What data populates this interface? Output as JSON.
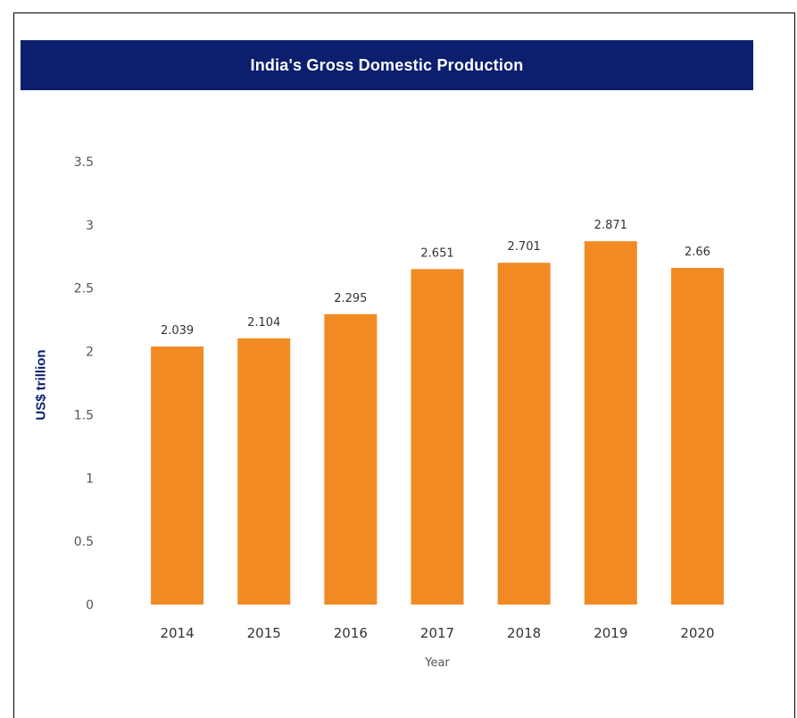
{
  "chart_data": {
    "type": "bar",
    "title": "India's Gross Domestic Production",
    "xlabel": "Year",
    "ylabel": "US$ trillion",
    "categories": [
      "2014",
      "2015",
      "2016",
      "2017",
      "2018",
      "2019",
      "2020"
    ],
    "values": [
      2.039,
      2.104,
      2.295,
      2.651,
      2.701,
      2.871,
      2.66
    ],
    "data_labels": [
      "2.039",
      "2.104",
      "2.295",
      "2.651",
      "2.701",
      "2.871",
      "2.66"
    ],
    "yticks": [
      "0",
      "0.5",
      "1",
      "1.5",
      "2",
      "2.5",
      "3",
      "3.5"
    ],
    "ytick_values": [
      0,
      0.5,
      1,
      1.5,
      2,
      2.5,
      3,
      3.5
    ],
    "ylim": [
      0,
      3.5
    ],
    "grid": false,
    "legend": "none",
    "colors": {
      "bar": "#f28a24",
      "title_banner": "#0c1f6e",
      "ylabel": "#0c1f6e"
    }
  }
}
